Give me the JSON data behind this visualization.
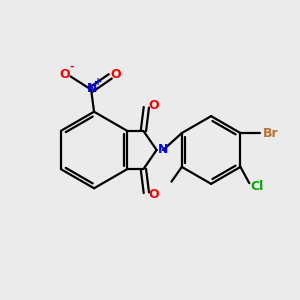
{
  "background_color": "#ebebeb",
  "bond_color": "#000000",
  "atom_colors": {
    "O": "#ff0000",
    "N_nitro": "#0000ff",
    "N_amine": "#0000ff",
    "Br": "#b87333",
    "Cl": "#00aa00",
    "C": "#000000"
  },
  "figsize": [
    3.0,
    3.0
  ],
  "dpi": 100
}
